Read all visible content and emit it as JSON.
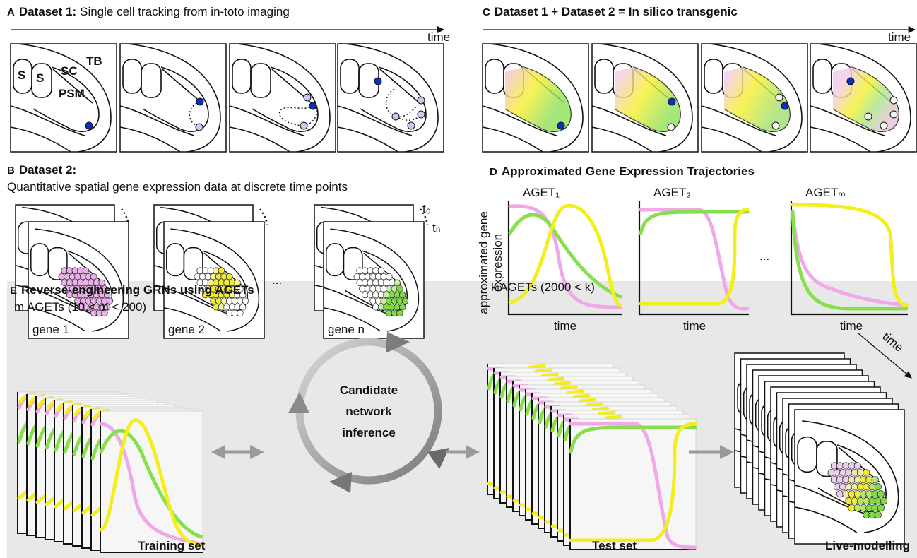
{
  "panel_a": {
    "letter": "A",
    "title": "Dataset 1:",
    "subtitle": "Single cell tracking from in-toto imaging",
    "axis_label": "time",
    "labels": [
      "S",
      "S",
      "SC",
      "TB",
      "PSM"
    ]
  },
  "panel_b": {
    "letter": "B",
    "title": "Dataset 2:",
    "subtitle": "Quantitative spatial gene expression data at discrete time points",
    "time_labels": [
      "t₀",
      "tₙ"
    ],
    "genes": [
      "gene 1",
      "gene 2",
      "gene n"
    ],
    "ellipsis": "..."
  },
  "panel_c": {
    "letter": "C",
    "title": "Dataset 1 + Dataset 2 = In silico transgenic",
    "axis_label": "time"
  },
  "panel_d": {
    "letter": "D",
    "title": "Approximated Gene Expression Trajectories",
    "y_label": [
      "approximated gene",
      "expression"
    ],
    "plots": [
      {
        "label": "AGET₁",
        "x_label": "time"
      },
      {
        "label": "AGET₂",
        "x_label": "time"
      },
      {
        "label": "AGETₘ",
        "x_label": "time"
      }
    ],
    "ellipsis": "..."
  },
  "panel_e": {
    "letter": "E",
    "title": "Reverse-engineering GRNs using AGETs",
    "training_count": "m AGETs (10 < m < 200)",
    "training_label": "Training set",
    "cycle_label": [
      "Candidate",
      "network",
      "inference"
    ],
    "test_count": "k AGETs (2000 < k)",
    "test_label": "Test set",
    "live_label": "Live-modelling",
    "time_label": "time"
  }
}
